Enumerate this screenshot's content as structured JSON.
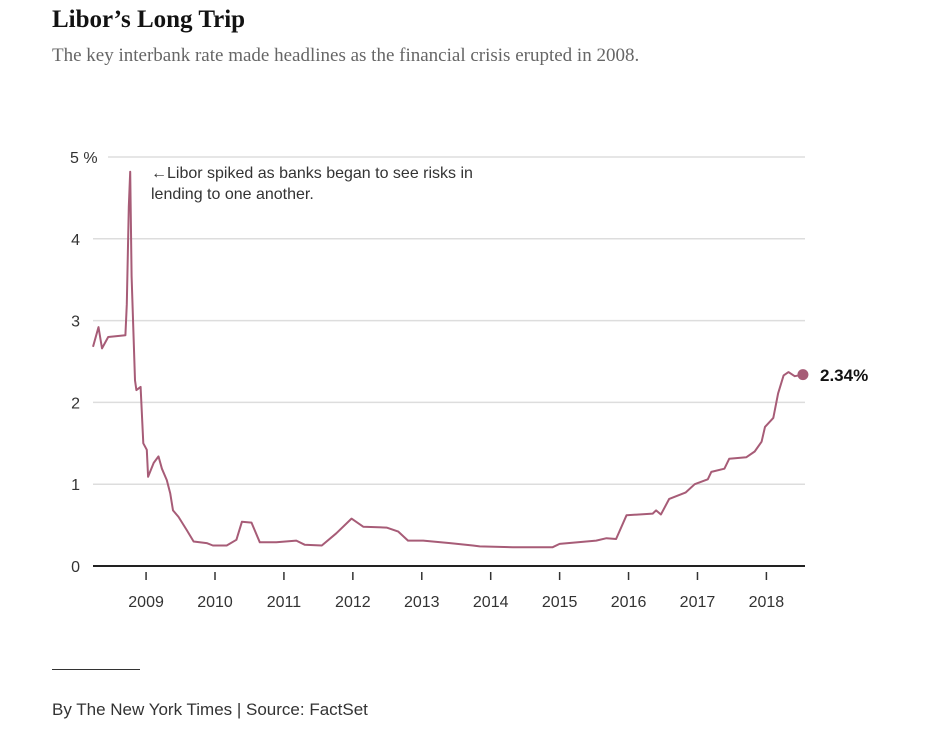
{
  "header": {
    "title": "Libor’s Long Trip",
    "subtitle": "The key interbank rate made headlines as the financial crisis erupted in 2008."
  },
  "chart_data": {
    "type": "line",
    "title": "Libor’s Long Trip",
    "xlabel": "",
    "ylabel": "",
    "xlim": [
      2008.23,
      2018.56
    ],
    "ylim": [
      0,
      5
    ],
    "grid": true,
    "y_ticks": [
      {
        "value": 0,
        "label": "0"
      },
      {
        "value": 1,
        "label": "1"
      },
      {
        "value": 2,
        "label": "2"
      },
      {
        "value": 3,
        "label": "3"
      },
      {
        "value": 4,
        "label": "4"
      },
      {
        "value": 5,
        "label": "5 %"
      }
    ],
    "x_ticks": [
      {
        "value": 2009,
        "label": "2009"
      },
      {
        "value": 2010,
        "label": "2010"
      },
      {
        "value": 2011,
        "label": "2011"
      },
      {
        "value": 2012,
        "label": "2012"
      },
      {
        "value": 2013,
        "label": "2013"
      },
      {
        "value": 2014,
        "label": "2014"
      },
      {
        "value": 2015,
        "label": "2015"
      },
      {
        "value": 2016,
        "label": "2016"
      },
      {
        "value": 2017,
        "label": "2017"
      },
      {
        "value": 2018,
        "label": "2018"
      }
    ],
    "color": "#a75c77",
    "x": [
      2008.23,
      2008.31,
      2008.36,
      2008.45,
      2008.7,
      2008.72,
      2008.75,
      2008.77,
      2008.79,
      2008.84,
      2008.86,
      2008.92,
      2008.96,
      2009.01,
      2009.03,
      2009.11,
      2009.18,
      2009.23,
      2009.3,
      2009.35,
      2009.39,
      2009.47,
      2009.59,
      2009.69,
      2009.88,
      2009.97,
      2010.17,
      2010.31,
      2010.39,
      2010.53,
      2010.65,
      2010.89,
      2011.18,
      2011.3,
      2011.55,
      2011.76,
      2011.98,
      2012.15,
      2012.49,
      2012.66,
      2012.8,
      2013.02,
      2013.41,
      2013.74,
      2013.84,
      2014.32,
      2014.9,
      2015.0,
      2015.53,
      2015.68,
      2015.82,
      2015.97,
      2016.35,
      2016.4,
      2016.47,
      2016.59,
      2016.83,
      2016.96,
      2017.15,
      2017.2,
      2017.39,
      2017.46,
      2017.71,
      2017.83,
      2017.93,
      2017.98,
      2018.1,
      2018.17,
      2018.25,
      2018.32,
      2018.41,
      2018.53
    ],
    "y": [
      2.68,
      2.92,
      2.66,
      2.8,
      2.82,
      3.2,
      4.39,
      4.82,
      3.54,
      2.27,
      2.15,
      2.19,
      1.5,
      1.42,
      1.09,
      1.26,
      1.34,
      1.19,
      1.05,
      0.89,
      0.68,
      0.6,
      0.44,
      0.3,
      0.28,
      0.25,
      0.25,
      0.32,
      0.54,
      0.53,
      0.29,
      0.29,
      0.31,
      0.26,
      0.25,
      0.4,
      0.58,
      0.48,
      0.47,
      0.42,
      0.31,
      0.31,
      0.28,
      0.25,
      0.24,
      0.23,
      0.23,
      0.27,
      0.31,
      0.34,
      0.33,
      0.62,
      0.64,
      0.68,
      0.63,
      0.82,
      0.9,
      1.0,
      1.06,
      1.15,
      1.19,
      1.31,
      1.33,
      1.4,
      1.52,
      1.7,
      1.81,
      2.11,
      2.33,
      2.37,
      2.32,
      2.34
    ],
    "annotation": "←Libor spiked as banks began to see risks in lending to one another.",
    "end_label": "2.34%"
  },
  "footer": {
    "credit": "By The New York Times | Source: FactSet"
  }
}
